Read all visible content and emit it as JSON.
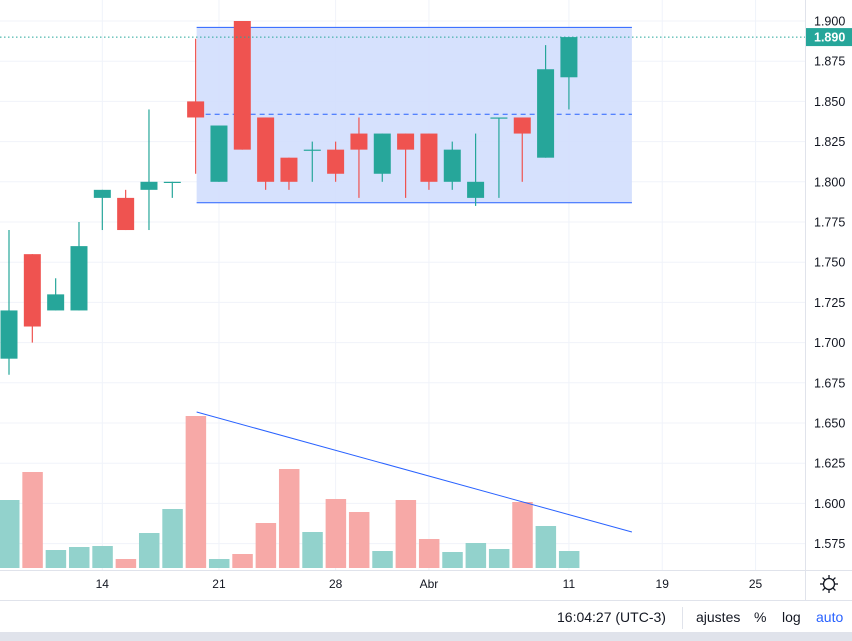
{
  "chart_data": {
    "type": "candlestick",
    "title": "",
    "colors": {
      "up": "#26a69a",
      "down": "#ef5350",
      "up_volume": "#92d2cc",
      "down_volume": "#f7a9a7",
      "range_fill": "#d2defd",
      "range_line": "#2962ff",
      "trendline": "#2962ff"
    },
    "candles": [
      {
        "o": 1.69,
        "h": 1.77,
        "l": 1.68,
        "c": 1.72,
        "v": 68
      },
      {
        "o": 1.755,
        "h": 1.755,
        "l": 1.7,
        "c": 1.71,
        "v": 96
      },
      {
        "o": 1.72,
        "h": 1.74,
        "l": 1.72,
        "c": 1.73,
        "v": 18
      },
      {
        "o": 1.72,
        "h": 1.775,
        "l": 1.72,
        "c": 1.76,
        "v": 21
      },
      {
        "o": 1.79,
        "h": 1.795,
        "l": 1.77,
        "c": 1.795,
        "v": 22
      },
      {
        "o": 1.79,
        "h": 1.795,
        "l": 1.77,
        "c": 1.77,
        "v": 9
      },
      {
        "o": 1.795,
        "h": 1.845,
        "l": 1.77,
        "c": 1.8,
        "v": 35
      },
      {
        "o": 1.8,
        "h": 1.8,
        "l": 1.79,
        "c": 1.8,
        "v": 59
      },
      {
        "o": 1.85,
        "h": 1.889,
        "l": 1.805,
        "c": 1.84,
        "v": 152
      },
      {
        "o": 1.8,
        "h": 1.835,
        "l": 1.8,
        "c": 1.835,
        "v": 9
      },
      {
        "o": 1.9,
        "h": 1.9,
        "l": 1.82,
        "c": 1.82,
        "v": 14
      },
      {
        "o": 1.84,
        "h": 1.84,
        "l": 1.795,
        "c": 1.8,
        "v": 45
      },
      {
        "o": 1.815,
        "h": 1.815,
        "l": 1.795,
        "c": 1.8,
        "v": 99
      },
      {
        "o": 1.82,
        "h": 1.825,
        "l": 1.8,
        "c": 1.82,
        "v": 36
      },
      {
        "o": 1.82,
        "h": 1.825,
        "l": 1.8,
        "c": 1.805,
        "v": 69
      },
      {
        "o": 1.83,
        "h": 1.84,
        "l": 1.79,
        "c": 1.82,
        "v": 56
      },
      {
        "o": 1.805,
        "h": 1.83,
        "l": 1.8,
        "c": 1.83,
        "v": 17
      },
      {
        "o": 1.83,
        "h": 1.83,
        "l": 1.79,
        "c": 1.82,
        "v": 68
      },
      {
        "o": 1.83,
        "h": 1.83,
        "l": 1.795,
        "c": 1.8,
        "v": 29
      },
      {
        "o": 1.8,
        "h": 1.825,
        "l": 1.795,
        "c": 1.82,
        "v": 16
      },
      {
        "o": 1.79,
        "h": 1.83,
        "l": 1.785,
        "c": 1.8,
        "v": 25
      },
      {
        "o": 1.84,
        "h": 1.84,
        "l": 1.79,
        "c": 1.84,
        "v": 19
      },
      {
        "o": 1.84,
        "h": 1.84,
        "l": 1.8,
        "c": 1.83,
        "v": 66
      },
      {
        "o": 1.815,
        "h": 1.885,
        "l": 1.815,
        "c": 1.87,
        "v": 42
      },
      {
        "o": 1.865,
        "h": 1.89,
        "l": 1.845,
        "c": 1.89,
        "v": 17
      }
    ],
    "y_ticks": [
      "1.900",
      "1.875",
      "1.850",
      "1.825",
      "1.800",
      "1.775",
      "1.750",
      "1.725",
      "1.700",
      "1.675",
      "1.650",
      "1.625",
      "1.600",
      "1.575"
    ],
    "ylim": [
      1.5625,
      1.913
    ],
    "x_ticks": [
      {
        "label": "14",
        "index": 4
      },
      {
        "label": "21",
        "index": 9
      },
      {
        "label": "28",
        "index": 14
      },
      {
        "label": "Abr",
        "index": 18
      },
      {
        "label": "11",
        "index": 24
      },
      {
        "label": "19",
        "index": 28
      },
      {
        "label": "25",
        "index": 32
      }
    ],
    "last_price": "1.890",
    "range_box": {
      "from_index": 8,
      "to_index": 27,
      "top": 1.896,
      "bottom": 1.787,
      "mid": 1.842
    },
    "volume_trendline": {
      "from_index": 8,
      "from_volume": 156,
      "to_index": 27,
      "to_volume": 36
    },
    "grid": true
  },
  "status_bar": {
    "time": "16:04:27 (UTC-3)",
    "settings": "ajustes",
    "percent": "%",
    "log": "log",
    "auto": "auto"
  }
}
